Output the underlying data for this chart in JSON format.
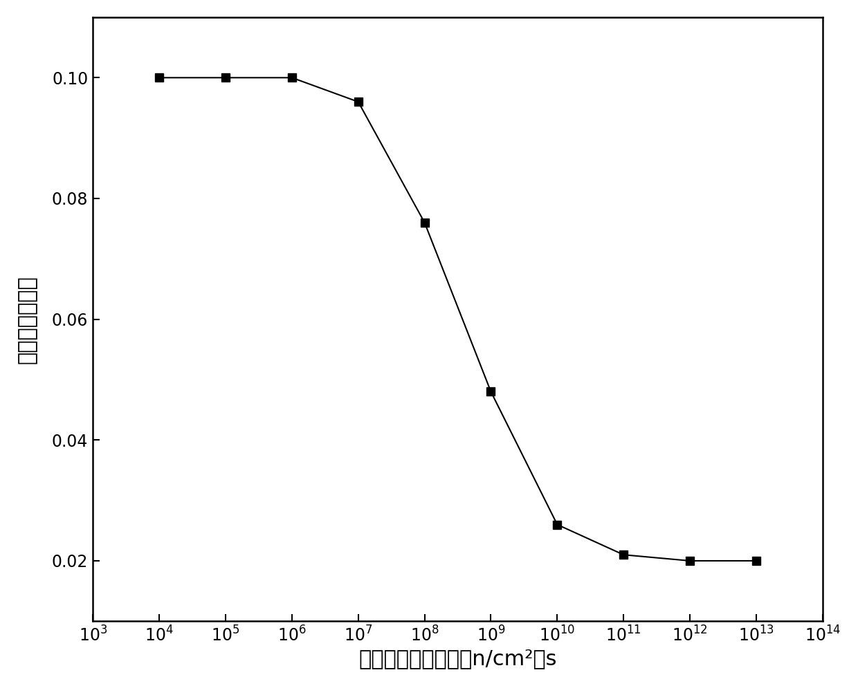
{
  "x": [
    10000.0,
    100000.0,
    1000000.0,
    10000000.0,
    100000000.0,
    1000000000.0,
    10000000000.0,
    100000000000.0,
    1000000000000.0,
    10000000000000.0
  ],
  "y": [
    0.1,
    0.1,
    0.1,
    0.096,
    0.076,
    0.048,
    0.026,
    0.021,
    0.02,
    0.02
  ],
  "xlim": [
    1000.0,
    100000000000000.0
  ],
  "ylim": [
    0.01,
    0.11
  ],
  "xlabel": "中子的辐照注量率（n/cm²）s",
  "ylabel": "稳定缺陷的产率",
  "line_color": "#000000",
  "marker": "s",
  "marker_color": "#000000",
  "marker_size": 8,
  "line_width": 1.5,
  "yticks": [
    0.02,
    0.04,
    0.06,
    0.08,
    0.1
  ],
  "background_color": "#ffffff",
  "font_size_label": 22,
  "font_size_tick": 17
}
